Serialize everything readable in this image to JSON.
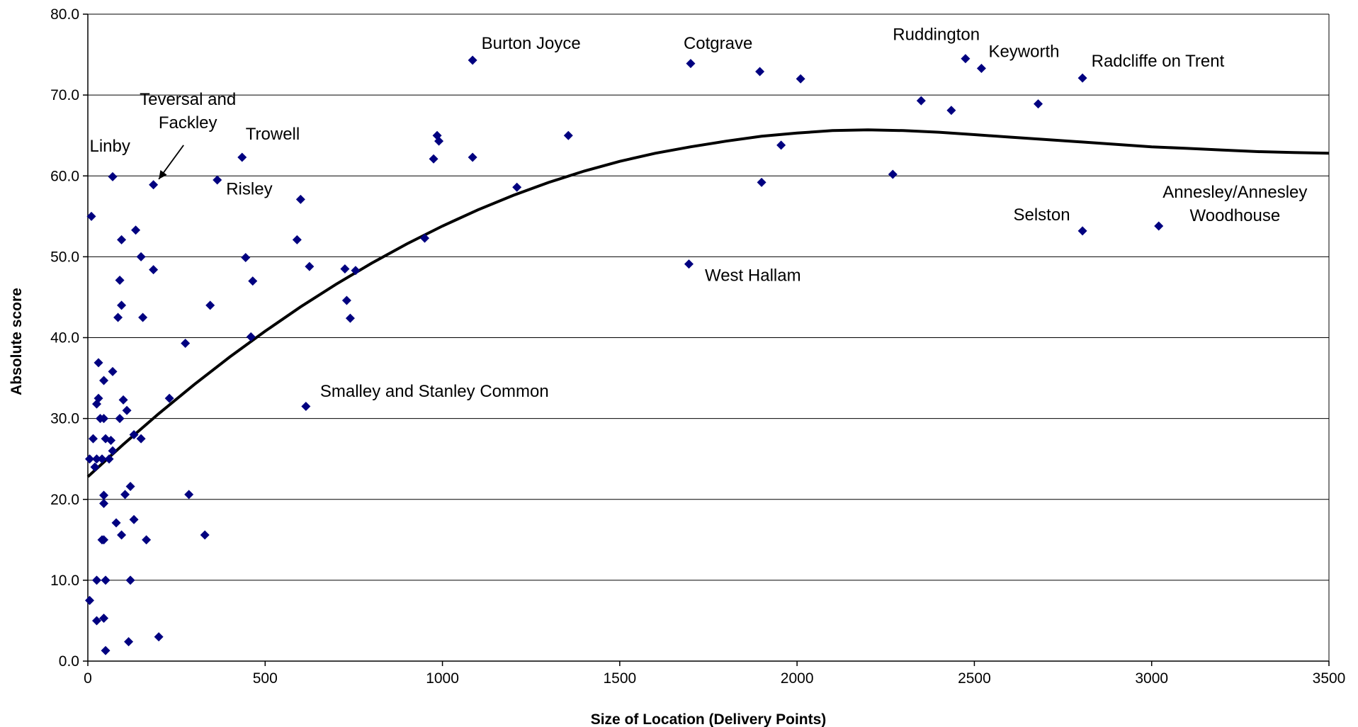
{
  "chart_data": {
    "type": "scatter",
    "title": "",
    "xlabel": "Size of Location (Delivery Points)",
    "ylabel": "Absolute score",
    "xlim": [
      0,
      3500
    ],
    "ylim": [
      0,
      80
    ],
    "grid": "horizontal",
    "x_ticks": [
      0,
      500,
      1000,
      1500,
      2000,
      2500,
      3000,
      3500
    ],
    "y_ticks": [
      0,
      10,
      20,
      30,
      40,
      50,
      60,
      70,
      80
    ],
    "x_tick_labels": [
      "0",
      "500",
      "1000",
      "1500",
      "2000",
      "2500",
      "3000",
      "3500"
    ],
    "y_tick_labels": [
      "0.0",
      "10.0",
      "20.0",
      "30.0",
      "40.0",
      "50.0",
      "60.0",
      "70.0",
      "80.0"
    ],
    "marker_color": "#000080",
    "trendline_color": "#000000",
    "series": [
      {
        "points": [
          [
            1085,
            74.3
          ],
          [
            1700,
            73.9
          ],
          [
            1895,
            72.9
          ],
          [
            2010,
            72.0
          ],
          [
            2475,
            74.5
          ],
          [
            2520,
            73.3
          ],
          [
            2805,
            72.1
          ],
          [
            2350,
            69.3
          ],
          [
            2435,
            68.1
          ],
          [
            2680,
            68.9
          ],
          [
            1355,
            65.0
          ],
          [
            985,
            65.0
          ],
          [
            990,
            64.3
          ],
          [
            1955,
            63.8
          ],
          [
            435,
            62.3
          ],
          [
            975,
            62.1
          ],
          [
            1085,
            62.3
          ],
          [
            2270,
            60.2
          ],
          [
            70,
            59.9
          ],
          [
            365,
            59.5
          ],
          [
            185,
            58.9
          ],
          [
            1210,
            58.6
          ],
          [
            1900,
            59.2
          ],
          [
            600,
            57.1
          ],
          [
            10,
            55.0
          ],
          [
            135,
            53.3
          ],
          [
            2805,
            53.2
          ],
          [
            3020,
            53.8
          ],
          [
            95,
            52.1
          ],
          [
            590,
            52.1
          ],
          [
            950,
            52.3
          ],
          [
            150,
            50.0
          ],
          [
            445,
            49.9
          ],
          [
            1695,
            49.1
          ],
          [
            185,
            48.4
          ],
          [
            625,
            48.8
          ],
          [
            725,
            48.5
          ],
          [
            755,
            48.3
          ],
          [
            90,
            47.1
          ],
          [
            465,
            47.0
          ],
          [
            95,
            44.0
          ],
          [
            345,
            44.0
          ],
          [
            730,
            44.6
          ],
          [
            85,
            42.5
          ],
          [
            155,
            42.5
          ],
          [
            740,
            42.4
          ],
          [
            460,
            40.1
          ],
          [
            275,
            39.3
          ],
          [
            30,
            36.9
          ],
          [
            70,
            35.8
          ],
          [
            45,
            34.7
          ],
          [
            615,
            31.5
          ],
          [
            30,
            32.5
          ],
          [
            25,
            31.8
          ],
          [
            100,
            32.3
          ],
          [
            230,
            32.5
          ],
          [
            110,
            31.0
          ],
          [
            35,
            30.0
          ],
          [
            45,
            30.0
          ],
          [
            90,
            30.0
          ],
          [
            15,
            27.5
          ],
          [
            50,
            27.5
          ],
          [
            65,
            27.3
          ],
          [
            130,
            28.0
          ],
          [
            150,
            27.5
          ],
          [
            5,
            25.0
          ],
          [
            25,
            25.0
          ],
          [
            40,
            25.0
          ],
          [
            60,
            25.0
          ],
          [
            70,
            26.0
          ],
          [
            20,
            24.0
          ],
          [
            120,
            21.6
          ],
          [
            105,
            20.6
          ],
          [
            45,
            20.5
          ],
          [
            45,
            19.5
          ],
          [
            285,
            20.6
          ],
          [
            80,
            17.1
          ],
          [
            130,
            17.5
          ],
          [
            95,
            15.6
          ],
          [
            40,
            15.0
          ],
          [
            45,
            15.0
          ],
          [
            165,
            15.0
          ],
          [
            330,
            15.6
          ],
          [
            25,
            10.0
          ],
          [
            50,
            10.0
          ],
          [
            120,
            10.0
          ],
          [
            5,
            7.5
          ],
          [
            25,
            5.0
          ],
          [
            45,
            5.3
          ],
          [
            115,
            2.4
          ],
          [
            200,
            3.0
          ],
          [
            50,
            1.3
          ]
        ]
      }
    ],
    "trendline": [
      [
        0,
        22.8
      ],
      [
        100,
        26.8
      ],
      [
        200,
        30.6
      ],
      [
        300,
        34.2
      ],
      [
        400,
        37.6
      ],
      [
        500,
        40.8
      ],
      [
        600,
        43.8
      ],
      [
        700,
        46.6
      ],
      [
        800,
        49.2
      ],
      [
        900,
        51.6
      ],
      [
        1000,
        53.8
      ],
      [
        1100,
        55.8
      ],
      [
        1200,
        57.6
      ],
      [
        1300,
        59.2
      ],
      [
        1400,
        60.6
      ],
      [
        1500,
        61.8
      ],
      [
        1600,
        62.8
      ],
      [
        1700,
        63.6
      ],
      [
        1800,
        64.3
      ],
      [
        1900,
        64.9
      ],
      [
        2000,
        65.3
      ],
      [
        2100,
        65.6
      ],
      [
        2200,
        65.7
      ],
      [
        2300,
        65.6
      ],
      [
        2400,
        65.4
      ],
      [
        2500,
        65.1
      ],
      [
        2600,
        64.8
      ],
      [
        2700,
        64.5
      ],
      [
        2800,
        64.2
      ],
      [
        2900,
        63.9
      ],
      [
        3000,
        63.6
      ],
      [
        3100,
        63.4
      ],
      [
        3200,
        63.2
      ],
      [
        3300,
        63.0
      ],
      [
        3400,
        62.9
      ],
      [
        3500,
        62.8
      ]
    ],
    "annotations": [
      {
        "lines": [
          "Burton Joyce"
        ],
        "x": 1110,
        "y": 75.7,
        "anchor": "start"
      },
      {
        "lines": [
          "Cotgrave"
        ],
        "x": 1680,
        "y": 75.7,
        "anchor": "start"
      },
      {
        "lines": [
          "Ruddington"
        ],
        "x": 2270,
        "y": 76.8,
        "anchor": "start"
      },
      {
        "lines": [
          "Keyworth"
        ],
        "x": 2540,
        "y": 74.7,
        "anchor": "start"
      },
      {
        "lines": [
          "Radcliffe on Trent"
        ],
        "x": 2830,
        "y": 73.5,
        "anchor": "start"
      },
      {
        "lines": [
          "Teversal and",
          "Fackley"
        ],
        "x": 282,
        "y": 68.8,
        "anchor": "middle"
      },
      {
        "lines": [
          "Trowell"
        ],
        "x": 445,
        "y": 64.5,
        "anchor": "start"
      },
      {
        "lines": [
          "Linby"
        ],
        "x": 5,
        "y": 63.0,
        "anchor": "start"
      },
      {
        "lines": [
          "Risley"
        ],
        "x": 390,
        "y": 57.7,
        "anchor": "start"
      },
      {
        "lines": [
          "Selston"
        ],
        "x": 2610,
        "y": 54.5,
        "anchor": "start"
      },
      {
        "lines": [
          "Annesley/Annesley",
          "Woodhouse"
        ],
        "x": 3235,
        "y": 57.3,
        "anchor": "middle"
      },
      {
        "lines": [
          "West Hallam"
        ],
        "x": 1740,
        "y": 47.0,
        "anchor": "start"
      },
      {
        "lines": [
          "Smalley and Stanley Common"
        ],
        "x": 655,
        "y": 32.7,
        "anchor": "start"
      }
    ],
    "arrows": [
      {
        "label": "Teversal and Fackley",
        "from": [
          270,
          63.8
        ],
        "to": [
          200,
          59.6
        ]
      }
    ]
  }
}
